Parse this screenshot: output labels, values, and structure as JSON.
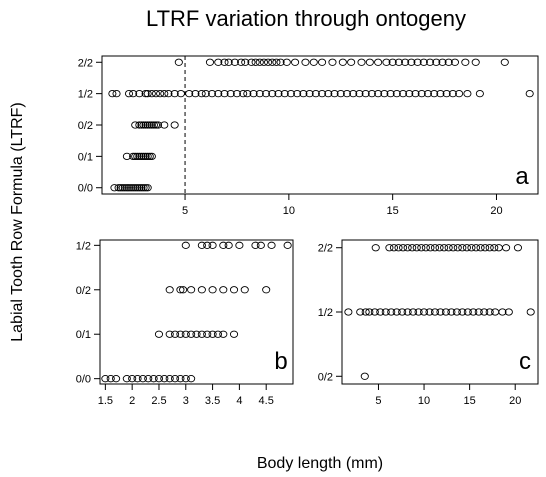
{
  "figure": {
    "title": "LTRF variation through ontogeny",
    "xlabel": "Body length (mm)",
    "ylabel": "Labial Tooth Row Formula (LTRF)"
  },
  "chart_data": [
    {
      "panel": "a",
      "type": "scatter",
      "xlim": [
        1,
        22
      ],
      "ylim": [
        -0.2,
        4.2
      ],
      "xticks": [
        5,
        10,
        15,
        20
      ],
      "yticks": [
        0,
        1,
        2,
        3,
        4
      ],
      "ytick_labels": [
        "0/0",
        "0/1",
        "0/2",
        "1/2",
        "2/2"
      ],
      "threshold_line_x": 5,
      "marker": "open-circle",
      "groups": [
        {
          "label": "0/0",
          "y": 0,
          "x": [
            1.6,
            1.8,
            1.9,
            2.0,
            2.1,
            2.2,
            2.3,
            2.4,
            2.5,
            2.6,
            2.7,
            2.8,
            2.9,
            3.0,
            3.1,
            3.2
          ]
        },
        {
          "label": "0/1",
          "y": 1,
          "x": [
            2.2,
            2.5,
            2.6,
            2.7,
            2.8,
            2.9,
            3.0,
            3.1,
            3.2,
            3.3,
            3.4
          ]
        },
        {
          "label": "0/2",
          "y": 2,
          "x": [
            2.6,
            2.8,
            2.9,
            3.0,
            3.1,
            3.2,
            3.3,
            3.4,
            3.5,
            3.6,
            3.7,
            4.0,
            4.5
          ]
        },
        {
          "label": "1/2",
          "y": 3,
          "x": [
            1.5,
            1.7,
            2.3,
            2.5,
            2.8,
            3.1,
            3.2,
            3.4,
            3.6,
            3.8,
            4.0,
            4.2,
            4.5,
            4.8,
            5.2,
            5.5,
            5.8,
            6.0,
            6.3,
            6.6,
            6.9,
            7.2,
            7.5,
            7.8,
            8.0,
            8.3,
            8.6,
            8.9,
            9.2,
            9.5,
            9.8,
            10.1,
            10.4,
            10.7,
            11.0,
            11.3,
            11.6,
            11.9,
            12.2,
            12.5,
            12.8,
            13.1,
            13.4,
            13.7,
            14.0,
            14.3,
            14.6,
            14.9,
            15.2,
            15.5,
            15.8,
            16.1,
            16.4,
            16.7,
            17.0,
            17.3,
            17.6,
            17.9,
            18.2,
            18.6,
            19.2,
            21.6
          ]
        },
        {
          "label": "2/2",
          "y": 4,
          "x": [
            4.7,
            6.2,
            6.6,
            6.9,
            7.1,
            7.4,
            7.7,
            7.9,
            8.2,
            8.4,
            8.6,
            8.8,
            9.0,
            9.2,
            9.4,
            9.6,
            9.9,
            10.3,
            10.8,
            11.2,
            11.6,
            12.1,
            12.6,
            13.0,
            13.5,
            13.9,
            14.3,
            14.7,
            15.0,
            15.3,
            15.6,
            15.9,
            16.2,
            16.5,
            16.8,
            17.1,
            17.4,
            17.7,
            18.0,
            18.5,
            19.0,
            20.4
          ]
        }
      ]
    },
    {
      "panel": "b",
      "type": "scatter",
      "xlim": [
        1.4,
        5.0
      ],
      "ylim": [
        -0.12,
        3.12
      ],
      "xticks": [
        1.5,
        2.5,
        3.5,
        4.5
      ],
      "xtick_labels": [
        "1.5",
        "2.5",
        "3.5",
        "4.5"
      ],
      "xticks_minor": [
        2,
        3,
        4
      ],
      "xtick_minor_labels": [
        "2",
        "3",
        "4"
      ],
      "yticks": [
        0,
        1,
        2,
        3
      ],
      "ytick_labels": [
        "0/0",
        "0/1",
        "0/2",
        "1/2"
      ],
      "marker": "open-circle",
      "groups": [
        {
          "label": "0/0",
          "y": 0,
          "x": [
            1.5,
            1.6,
            1.7,
            1.9,
            2.0,
            2.1,
            2.2,
            2.3,
            2.4,
            2.5,
            2.6,
            2.7,
            2.8,
            2.9,
            3.0,
            3.1
          ]
        },
        {
          "label": "0/1",
          "y": 1,
          "x": [
            2.5,
            2.7,
            2.8,
            2.9,
            3.0,
            3.1,
            3.2,
            3.3,
            3.4,
            3.5,
            3.6,
            3.7,
            3.9
          ]
        },
        {
          "label": "0/2",
          "y": 2,
          "x": [
            2.7,
            2.9,
            2.95,
            3.1,
            3.3,
            3.5,
            3.7,
            3.9,
            4.1,
            4.5
          ]
        },
        {
          "label": "1/2",
          "y": 3,
          "x": [
            3.0,
            3.3,
            3.4,
            3.5,
            3.7,
            3.8,
            4.0,
            4.3,
            4.4,
            4.6,
            4.9
          ]
        }
      ]
    },
    {
      "panel": "c",
      "type": "scatter",
      "xlim": [
        1,
        22.5
      ],
      "ylim": [
        -0.12,
        2.12
      ],
      "xticks": [
        5,
        10,
        15,
        20
      ],
      "yticks": [
        0,
        1,
        2
      ],
      "ytick_labels": [
        "0/2",
        "1/2",
        "2/2"
      ],
      "marker": "open-circle",
      "groups": [
        {
          "label": "0/2",
          "y": 0,
          "x": [
            3.5
          ]
        },
        {
          "label": "1/2",
          "y": 1,
          "x": [
            1.7,
            3.0,
            3.6,
            4.0,
            4.6,
            5.2,
            5.8,
            6.4,
            7.0,
            7.6,
            8.2,
            8.8,
            9.4,
            10.0,
            10.6,
            11.2,
            11.8,
            12.4,
            13.0,
            13.6,
            14.2,
            14.8,
            15.4,
            16.0,
            16.6,
            17.2,
            17.8,
            18.6,
            19.3,
            21.7
          ]
        },
        {
          "label": "2/2",
          "y": 2,
          "x": [
            4.7,
            6.2,
            6.7,
            7.2,
            7.7,
            8.2,
            8.7,
            9.2,
            9.7,
            10.2,
            10.7,
            11.2,
            11.7,
            12.2,
            12.7,
            13.2,
            13.7,
            14.2,
            14.7,
            15.2,
            15.7,
            16.2,
            16.7,
            17.2,
            17.7,
            18.2,
            19.0,
            20.3
          ]
        }
      ]
    }
  ]
}
